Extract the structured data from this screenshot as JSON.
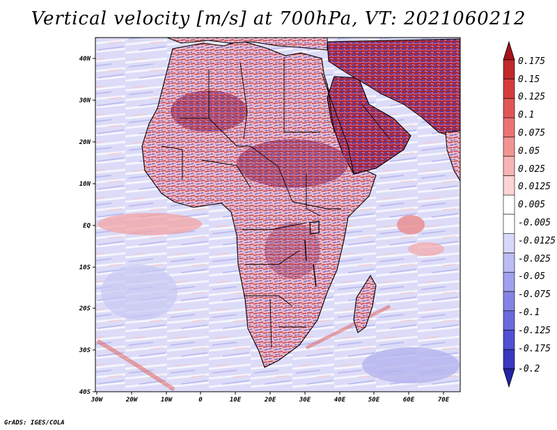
{
  "title": "Vertical velocity [m/s] at 700hPa, VT: 2021060212",
  "credit": "GrADS: IGES/COLA",
  "lat_labels": [
    "40N",
    "30N",
    "20N",
    "10N",
    "EQ",
    "10S",
    "20S",
    "30S",
    "40S"
  ],
  "lon_labels": [
    "30W",
    "20W",
    "10W",
    "0",
    "10E",
    "20E",
    "30E",
    "40E",
    "50E",
    "60E",
    "70E"
  ],
  "colorbar": {
    "labels": [
      "0.175",
      "0.15",
      "0.125",
      "0.1",
      "0.075",
      "0.05",
      "0.025",
      "0.0125",
      "0.005",
      "-0.005",
      "-0.0125",
      "-0.025",
      "-0.05",
      "-0.075",
      "-0.1",
      "-0.125",
      "-0.175",
      "-0.2"
    ],
    "colors": [
      "#a8121a",
      "#c0282a",
      "#d43c3c",
      "#e05656",
      "#ea7474",
      "#f29494",
      "#f8b4b4",
      "#fcd4d4",
      "#ffffff",
      "#ffffff",
      "#d8d8fa",
      "#bcbcf4",
      "#a0a0ee",
      "#8484e6",
      "#6a6ade",
      "#5050d2",
      "#3838c0",
      "#2424a8"
    ]
  }
}
